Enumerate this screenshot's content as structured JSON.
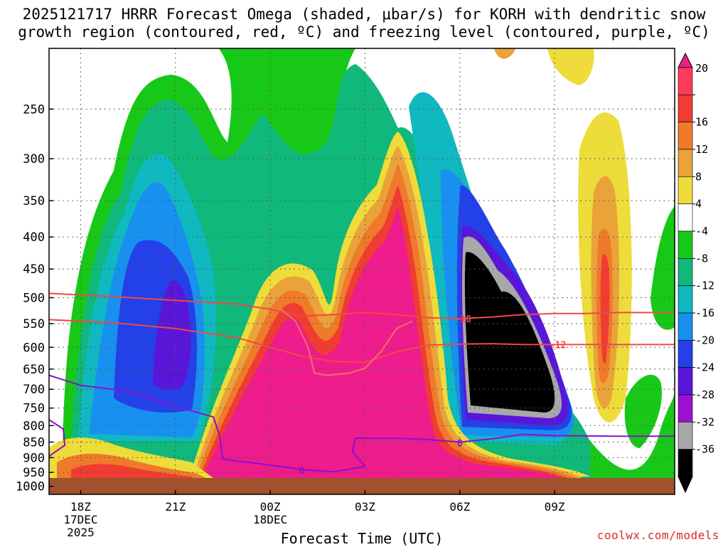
{
  "title_line1": "2025121717 HRRR Forecast Omega (shaded, μbar/s) for KORH with dendritic snow",
  "title_line2": "growth region (contoured, red, ºC) and freezing level (contoured, purple, ºC)",
  "credit": "coolwx.com/models",
  "chart_data": {
    "type": "heatmap",
    "xlabel": "Forecast Time (UTC)",
    "ylabel": "",
    "y_axis": {
      "ticks": [
        250,
        300,
        350,
        400,
        450,
        500,
        550,
        600,
        650,
        700,
        750,
        800,
        850,
        900,
        950,
        1000
      ],
      "range": [
        1030,
        200
      ],
      "scale": "log",
      "inverted": true
    },
    "x_axis": {
      "range_hours": [
        -1.0,
        18.8
      ],
      "ticks": [
        {
          "hour": 0,
          "label": "18Z",
          "sub1": "17DEC",
          "sub2": "2025"
        },
        {
          "hour": 3,
          "label": "21Z",
          "sub1": "",
          "sub2": ""
        },
        {
          "hour": 6,
          "label": "00Z",
          "sub1": "18DEC",
          "sub2": ""
        },
        {
          "hour": 9,
          "label": "03Z",
          "sub1": "",
          "sub2": ""
        },
        {
          "hour": 12,
          "label": "06Z",
          "sub1": "",
          "sub2": ""
        },
        {
          "hour": 15,
          "label": "09Z",
          "sub1": "",
          "sub2": ""
        }
      ]
    },
    "grid": true,
    "colorbar": {
      "labels": [
        "20",
        "16",
        "12",
        "8",
        "4",
        "-4",
        "-8",
        "-12",
        "-16",
        "-20",
        "-24",
        "-28",
        "-32",
        "-36"
      ],
      "colors": [
        "#ff3a5c",
        "#f03c32",
        "#ef7a2a",
        "#e9a33a",
        "#eddc3a",
        "#ffffff",
        "#18c818",
        "#10b87c",
        "#10b8c0",
        "#1890f0",
        "#2440e8",
        "#5a16d8",
        "#9c10d0",
        "#a8a8a8",
        "#000000"
      ],
      "top_arrow_color": "#ee1c8c",
      "bottom_arrow_color": "#000000"
    },
    "series": [
      {
        "name": "-18",
        "color": "#f04848",
        "points": [
          [
            -1,
            492
          ],
          [
            1,
            498
          ],
          [
            3,
            505
          ],
          [
            5,
            512
          ],
          [
            6,
            522
          ],
          [
            7,
            535
          ],
          [
            8,
            532
          ],
          [
            9,
            528
          ],
          [
            10,
            532
          ],
          [
            11,
            538
          ],
          [
            12,
            540
          ],
          [
            13,
            537
          ],
          [
            14,
            532
          ],
          [
            15,
            530
          ],
          [
            16,
            530
          ],
          [
            17,
            528
          ],
          [
            18.8,
            528
          ]
        ]
      },
      {
        "name": "-12",
        "color": "#f04848",
        "points": [
          [
            -1,
            542
          ],
          [
            1,
            548
          ],
          [
            3,
            560
          ],
          [
            5,
            580
          ],
          [
            6,
            600
          ],
          [
            7,
            620
          ],
          [
            8,
            632
          ],
          [
            9,
            634
          ],
          [
            10,
            610
          ],
          [
            11,
            595
          ],
          [
            12,
            593
          ],
          [
            13,
            592
          ],
          [
            14,
            594
          ],
          [
            15,
            594
          ],
          [
            17,
            594
          ],
          [
            18.8,
            594
          ]
        ]
      },
      {
        "name": "",
        "color": "#f07060",
        "points": [
          [
            6.2,
            515
          ],
          [
            6.8,
            545
          ],
          [
            7.2,
            600
          ],
          [
            7.4,
            660
          ],
          [
            7.8,
            665
          ],
          [
            8.5,
            660
          ],
          [
            9,
            648
          ],
          [
            9.5,
            610
          ],
          [
            10,
            560
          ],
          [
            10.5,
            545
          ]
        ]
      },
      {
        "name": "0",
        "color": "#8a10d0",
        "points": [
          [
            -1,
            665
          ],
          [
            0,
            690
          ],
          [
            1.5,
            705
          ],
          [
            3,
            745
          ],
          [
            4.2,
            775
          ],
          [
            4.4,
            830
          ],
          [
            4.5,
            905
          ],
          [
            6,
            925
          ],
          [
            7,
            940
          ],
          [
            8,
            948
          ],
          [
            9,
            930
          ],
          [
            8.6,
            880
          ],
          [
            8.7,
            838
          ],
          [
            9,
            838
          ],
          [
            10,
            838
          ],
          [
            11,
            842
          ],
          [
            12,
            850
          ],
          [
            13,
            840
          ],
          [
            14,
            826
          ],
          [
            15,
            830
          ],
          [
            17,
            832
          ],
          [
            18.8,
            832
          ]
        ]
      },
      {
        "name": "",
        "color": "#8a10d0",
        "points": [
          [
            -1,
            783
          ],
          [
            -0.55,
            810
          ],
          [
            -0.5,
            860
          ],
          [
            -1,
            895
          ]
        ]
      }
    ],
    "contour_labels": [
      {
        "text": "-18",
        "hour": 12.1,
        "p": 540,
        "color": "#f04848"
      },
      {
        "text": "-12",
        "hour": 15.1,
        "p": 594,
        "color": "#f04848"
      },
      {
        "text": "0",
        "hour": 12.0,
        "p": 852,
        "color": "#8a10d0"
      },
      {
        "text": "0",
        "hour": 7.0,
        "p": 942,
        "color": "#8a10d0"
      }
    ]
  }
}
